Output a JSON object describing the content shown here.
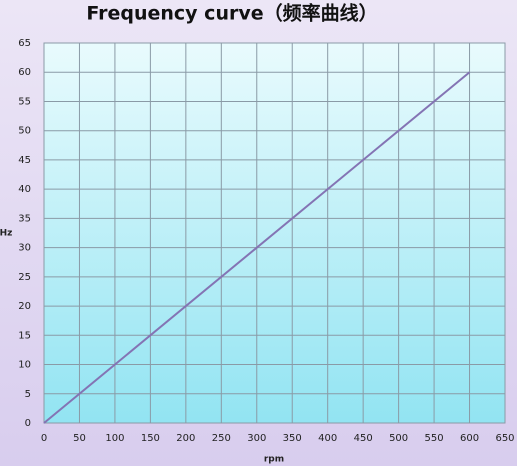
{
  "chart_data": {
    "type": "line",
    "title": "Frequency curve（频率曲线）",
    "x_label": "rpm",
    "y_label": "Hz",
    "x": [
      0,
      600
    ],
    "values": [
      0,
      60
    ],
    "color": "#8474b4",
    "xlim": [
      0,
      650
    ],
    "xticks": [
      0,
      50,
      100,
      150,
      200,
      250,
      300,
      350,
      400,
      450,
      500,
      550,
      600,
      650
    ],
    "ylim": [
      0,
      65
    ],
    "yticks": [
      0,
      5,
      10,
      15,
      20,
      25,
      30,
      35,
      40,
      45,
      50,
      55,
      60,
      65
    ],
    "grid": true
  }
}
